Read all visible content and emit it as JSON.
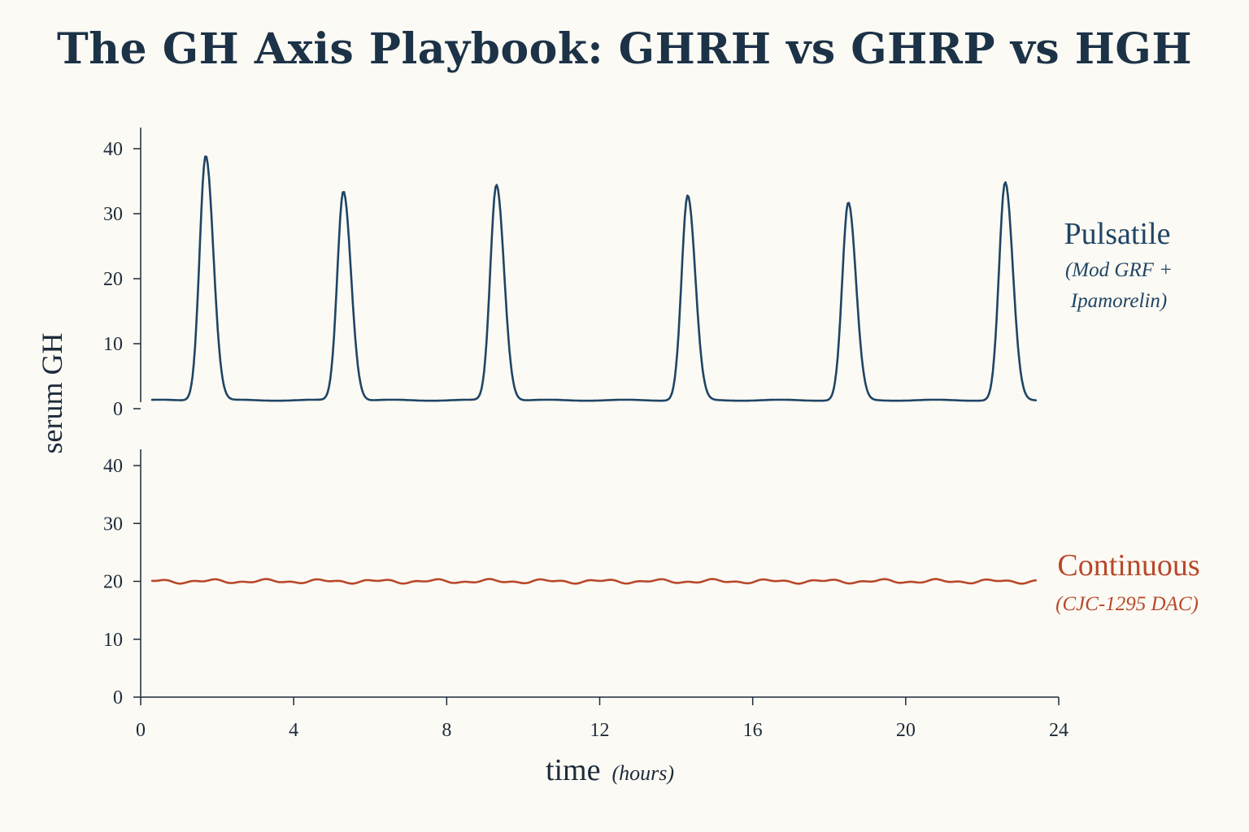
{
  "title": "The GH Axis Playbook: GHRH vs GHRP vs HGH",
  "colors": {
    "pulsatile": "#1f4565",
    "continuous": "#b8482a",
    "axis": "#1d2b3a"
  },
  "chart_data": {
    "type": "line",
    "title": "The GH Axis Playbook: GHRH vs GHRP vs HGH",
    "ylabel": "serum GH",
    "xlabel": "time",
    "xlabel_unit": "(hours)",
    "xlim": [
      0,
      24
    ],
    "ylim": [
      0,
      40
    ],
    "x_ticks": [
      0,
      4,
      8,
      12,
      16,
      20,
      24
    ],
    "y_ticks": [
      0,
      10,
      20,
      30,
      40
    ],
    "grid": false,
    "series": [
      {
        "name": "Pulsatile",
        "note": [
          "(Mod GRF +",
          "Ipamorelin)"
        ],
        "panel": "top",
        "color": "#1f4565",
        "x_range": [
          0.3,
          23.4
        ],
        "baseline": 1.3,
        "peaks": [
          {
            "x": 1.7,
            "y": 39
          },
          {
            "x": 5.3,
            "y": 33.5
          },
          {
            "x": 9.3,
            "y": 34.5
          },
          {
            "x": 14.3,
            "y": 32.8
          },
          {
            "x": 18.5,
            "y": 31.7
          },
          {
            "x": 22.6,
            "y": 34.8
          }
        ]
      },
      {
        "name": "Continuous",
        "note": [
          "(CJC-1295 DAC)"
        ],
        "panel": "bottom",
        "color": "#b8482a",
        "x_range": [
          0.3,
          23.4
        ],
        "level": 20,
        "fluctuation": 0.4
      }
    ]
  }
}
